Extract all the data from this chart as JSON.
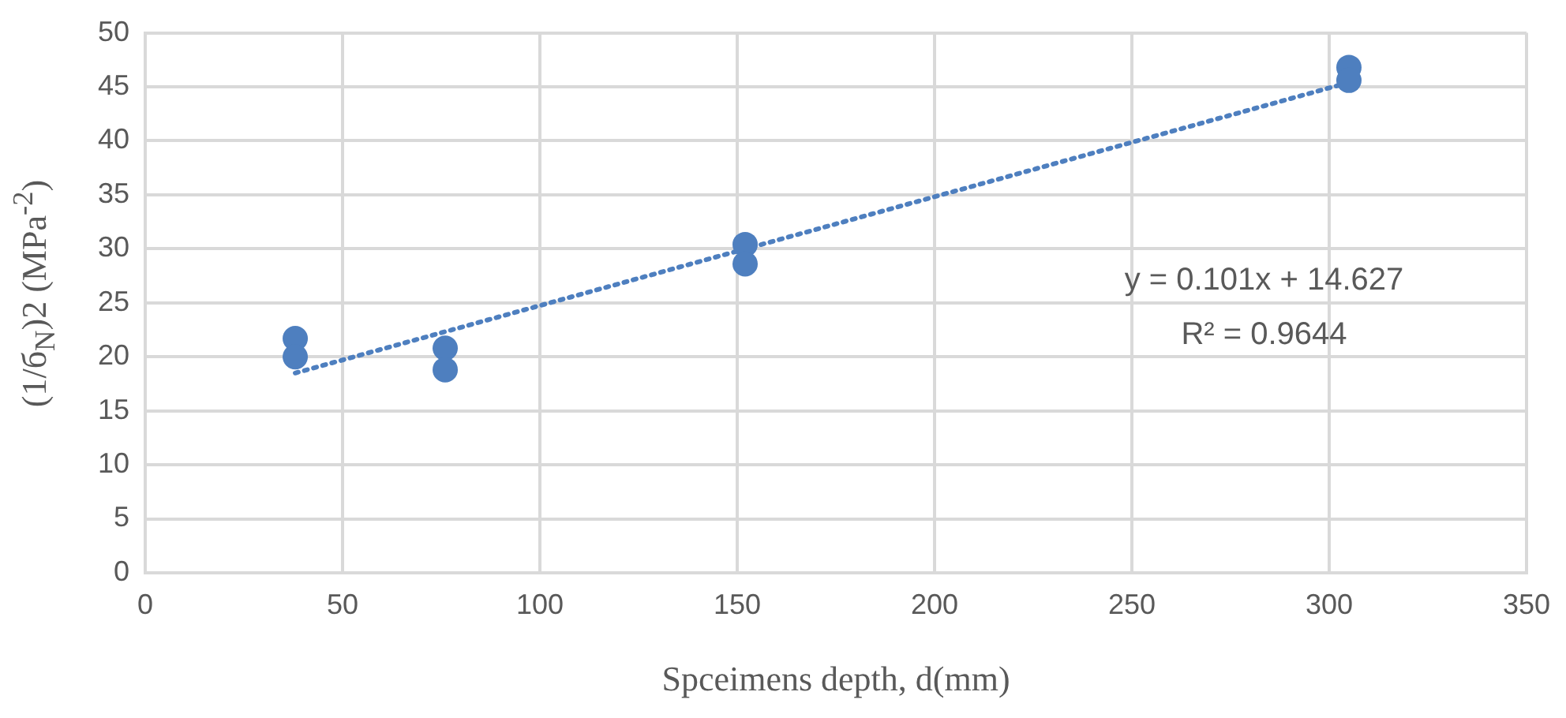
{
  "chart_data": {
    "type": "scatter",
    "xlabel": "Spceimens depth, d(mm)",
    "ylabel": "(1/б$_{N}$)2 (MPa$^{-2}$)",
    "xlim": [
      0,
      350
    ],
    "xticks": [
      0,
      50,
      100,
      150,
      200,
      250,
      300,
      350
    ],
    "ylim": [
      0,
      50
    ],
    "yticks": [
      0,
      5,
      10,
      15,
      20,
      25,
      30,
      35,
      40,
      45,
      50
    ],
    "grid": true,
    "legend": false,
    "series": [
      {
        "color": "#4e7fbf",
        "marker": "circle",
        "x": [
          38,
          38,
          76,
          76,
          152,
          152,
          305,
          305
        ],
        "values": [
          21.7,
          20.0,
          20.8,
          18.8,
          30.4,
          28.6,
          46.8,
          45.6
        ]
      },
      {
        "type": "line",
        "color": "#4e7fbf",
        "marker": "none",
        "line_style": "dotted",
        "x": [
          38,
          305
        ],
        "values": [
          18.5,
          45.4
        ]
      }
    ],
    "annotations": [
      "y = 0.101x + 14.627",
      "R² = 0.9644"
    ]
  }
}
